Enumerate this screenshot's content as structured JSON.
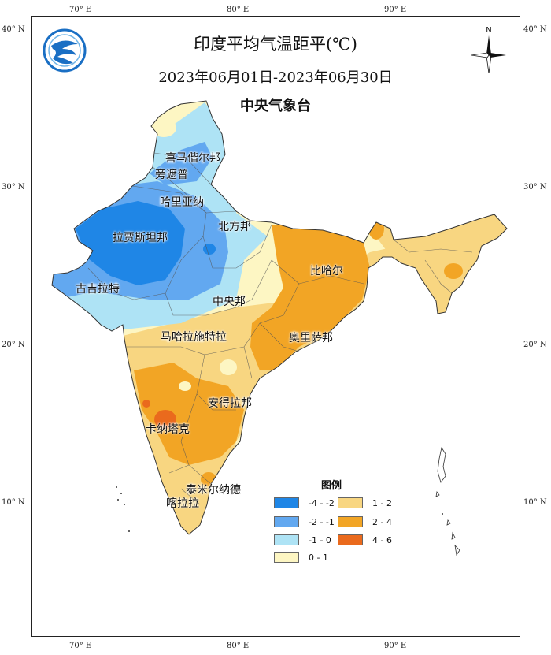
{
  "title": "印度平均气温距平(℃)",
  "date_range": "2023年06月01日-2023年06月30日",
  "agency": "中央气象台",
  "north_label": "N",
  "axes": {
    "top_ticks": [
      "70° E",
      "80° E",
      "90° E"
    ],
    "bottom_ticks": [
      "70° E",
      "80° E",
      "90° E"
    ],
    "left_ticks": [
      "40° N",
      "30° N",
      "20° N",
      "10° N"
    ],
    "right_ticks": [
      "40° N",
      "30° N",
      "20° N",
      "10° N"
    ]
  },
  "legend": {
    "title": "图例",
    "items": [
      {
        "label": "-4 - -2",
        "color": "#1f86e6"
      },
      {
        "label": "-2 - -1",
        "color": "#62a8f0"
      },
      {
        "label": "-1 - 0",
        "color": "#aee3f5"
      },
      {
        "label": "0 - 1",
        "color": "#fdf6c3"
      },
      {
        "label": "1 - 2",
        "color": "#f8d681"
      },
      {
        "label": "2 - 4",
        "color": "#f2a525"
      },
      {
        "label": "4 - 6",
        "color": "#ea6a1d"
      }
    ]
  },
  "regions": [
    {
      "name": "喜马偕尔邦"
    },
    {
      "name": "旁遮普"
    },
    {
      "name": "哈里亚纳"
    },
    {
      "name": "北方邦"
    },
    {
      "name": "拉贾斯坦邦"
    },
    {
      "name": "古吉拉特"
    },
    {
      "name": "比哈尔"
    },
    {
      "name": "中央邦"
    },
    {
      "name": "马哈拉施特拉"
    },
    {
      "name": "奥里萨邦"
    },
    {
      "name": "安得拉邦"
    },
    {
      "name": "卡纳塔克"
    },
    {
      "name": "泰米尔纳德"
    },
    {
      "name": "喀拉拉"
    }
  ]
}
